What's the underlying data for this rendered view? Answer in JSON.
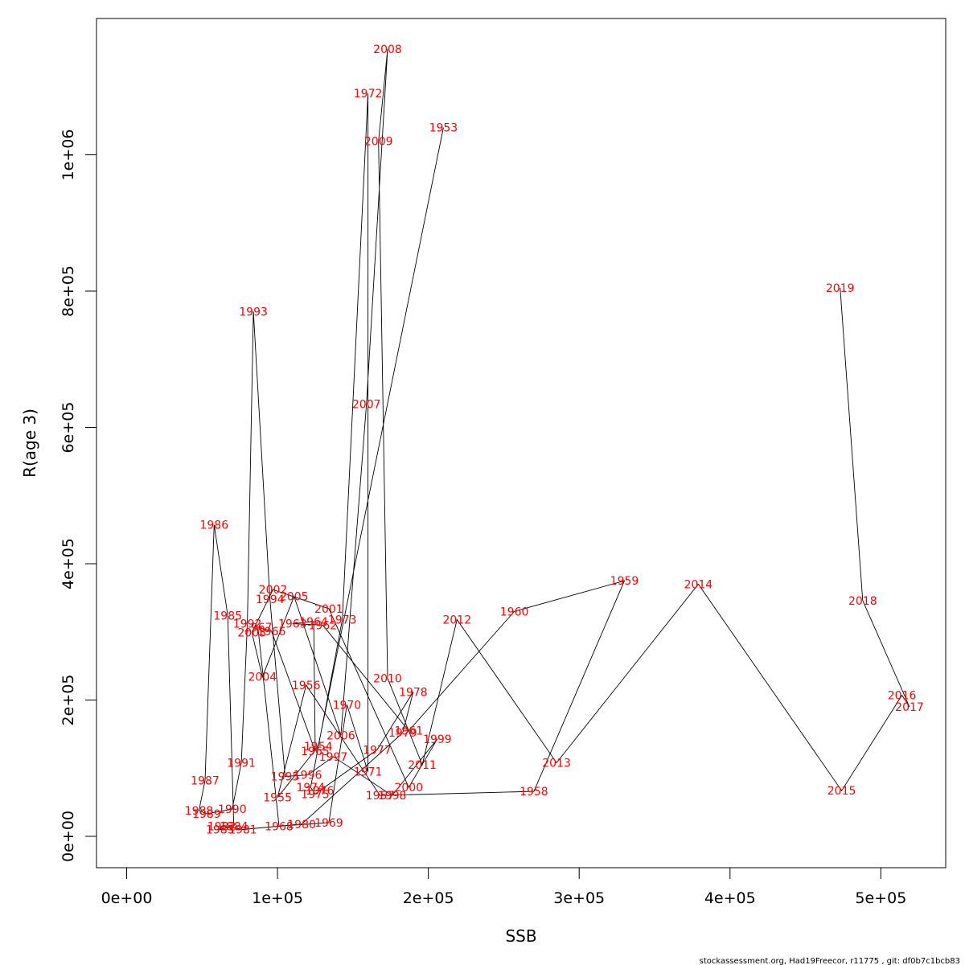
{
  "chart_data": {
    "type": "line",
    "title": "",
    "xlabel": "SSB",
    "ylabel": "R(age 3)",
    "xlim": [
      -20000,
      543000
    ],
    "ylim": [
      -46000,
      1200000
    ],
    "x_ticks": [
      {
        "value": 0,
        "label": "0e+00"
      },
      {
        "value": 100000,
        "label": "1e+05"
      },
      {
        "value": 200000,
        "label": "2e+05"
      },
      {
        "value": 300000,
        "label": "3e+05"
      },
      {
        "value": 400000,
        "label": "4e+05"
      },
      {
        "value": 500000,
        "label": "5e+05"
      }
    ],
    "y_ticks": [
      {
        "value": 0,
        "label": "0e+00"
      },
      {
        "value": 200000,
        "label": "2e+05"
      },
      {
        "value": 400000,
        "label": "4e+05"
      },
      {
        "value": 600000,
        "label": "6e+05"
      },
      {
        "value": 800000,
        "label": "8e+05"
      },
      {
        "value": 1000000,
        "label": "1e+06"
      }
    ],
    "line_color": "#000000",
    "label_color": "#ff0000",
    "grid": false,
    "points": [
      {
        "year": "1953",
        "ssb": 210000,
        "r": 1040000
      },
      {
        "year": "1954",
        "ssb": 127000,
        "r": 132000
      },
      {
        "year": "1955",
        "ssb": 100000,
        "r": 57000
      },
      {
        "year": "1956",
        "ssb": 119000,
        "r": 222000
      },
      {
        "year": "1957",
        "ssb": 168000,
        "r": 60000
      },
      {
        "year": "1958",
        "ssb": 270000,
        "r": 66000
      },
      {
        "year": "1959",
        "ssb": 330000,
        "r": 375000
      },
      {
        "year": "1960",
        "ssb": 257000,
        "r": 330000
      },
      {
        "year": "1961",
        "ssb": 187000,
        "r": 155000
      },
      {
        "year": "1962",
        "ssb": 130000,
        "r": 310000
      },
      {
        "year": "1963",
        "ssb": 110000,
        "r": 312000
      },
      {
        "year": "1964",
        "ssb": 124000,
        "r": 315000
      },
      {
        "year": "1965",
        "ssb": 125000,
        "r": 125000
      },
      {
        "year": "1966",
        "ssb": 96000,
        "r": 301000
      },
      {
        "year": "1967",
        "ssb": 87000,
        "r": 307000
      },
      {
        "year": "1968",
        "ssb": 101000,
        "r": 15000
      },
      {
        "year": "1969",
        "ssb": 134000,
        "r": 20000
      },
      {
        "year": "1970",
        "ssb": 146000,
        "r": 193000
      },
      {
        "year": "1971",
        "ssb": 160000,
        "r": 95000
      },
      {
        "year": "1972",
        "ssb": 160000,
        "r": 1090000
      },
      {
        "year": "1973",
        "ssb": 143000,
        "r": 318000
      },
      {
        "year": "1974",
        "ssb": 122000,
        "r": 72000
      },
      {
        "year": "1975",
        "ssb": 125000,
        "r": 62000
      },
      {
        "year": "1976",
        "ssb": 128000,
        "r": 67000
      },
      {
        "year": "1977",
        "ssb": 166000,
        "r": 127000
      },
      {
        "year": "1978",
        "ssb": 190000,
        "r": 212000
      },
      {
        "year": "1979",
        "ssb": 183000,
        "r": 152000
      },
      {
        "year": "1980",
        "ssb": 116000,
        "r": 18000
      },
      {
        "year": "1981",
        "ssb": 77000,
        "r": 10000
      },
      {
        "year": "1982",
        "ssb": 63000,
        "r": 15000
      },
      {
        "year": "1983",
        "ssb": 62000,
        "r": 10000
      },
      {
        "year": "1984",
        "ssb": 71000,
        "r": 15000
      },
      {
        "year": "1985",
        "ssb": 67000,
        "r": 324000
      },
      {
        "year": "1986",
        "ssb": 58000,
        "r": 457000
      },
      {
        "year": "1987",
        "ssb": 52000,
        "r": 82000
      },
      {
        "year": "1988",
        "ssb": 48000,
        "r": 38000
      },
      {
        "year": "1989",
        "ssb": 53000,
        "r": 33000
      },
      {
        "year": "1990",
        "ssb": 70000,
        "r": 40000
      },
      {
        "year": "1991",
        "ssb": 76000,
        "r": 108000
      },
      {
        "year": "1992",
        "ssb": 80000,
        "r": 312000
      },
      {
        "year": "1993",
        "ssb": 84000,
        "r": 770000
      },
      {
        "year": "1994",
        "ssb": 95000,
        "r": 348000
      },
      {
        "year": "1995",
        "ssb": 105000,
        "r": 88000
      },
      {
        "year": "1996",
        "ssb": 120000,
        "r": 90000
      },
      {
        "year": "1997",
        "ssb": 137000,
        "r": 117000
      },
      {
        "year": "1998",
        "ssb": 176000,
        "r": 60000
      },
      {
        "year": "1999",
        "ssb": 206000,
        "r": 143000
      },
      {
        "year": "2000",
        "ssb": 187000,
        "r": 72000
      },
      {
        "year": "2001",
        "ssb": 134000,
        "r": 334000
      },
      {
        "year": "2002",
        "ssb": 97000,
        "r": 362000
      },
      {
        "year": "2003",
        "ssb": 83000,
        "r": 299000
      },
      {
        "year": "2004",
        "ssb": 90000,
        "r": 234000
      },
      {
        "year": "2005",
        "ssb": 111000,
        "r": 352000
      },
      {
        "year": "2006",
        "ssb": 142000,
        "r": 148000
      },
      {
        "year": "2007",
        "ssb": 159000,
        "r": 634000
      },
      {
        "year": "2008",
        "ssb": 173000,
        "r": 1155000
      },
      {
        "year": "2009",
        "ssb": 167000,
        "r": 1020000
      },
      {
        "year": "2010",
        "ssb": 173000,
        "r": 232000
      },
      {
        "year": "2011",
        "ssb": 196000,
        "r": 105000
      },
      {
        "year": "2012",
        "ssb": 219000,
        "r": 318000
      },
      {
        "year": "2013",
        "ssb": 285000,
        "r": 108000
      },
      {
        "year": "2014",
        "ssb": 379000,
        "r": 370000
      },
      {
        "year": "2015",
        "ssb": 474000,
        "r": 67000
      },
      {
        "year": "2016",
        "ssb": 514000,
        "r": 207000
      },
      {
        "year": "2017",
        "ssb": 519000,
        "r": 190000
      },
      {
        "year": "2018",
        "ssb": 488000,
        "r": 346000
      },
      {
        "year": "2019",
        "ssb": 473000,
        "r": 805000
      }
    ]
  },
  "footer": {
    "credit": "stockassessment.org, Had19Freecor, r11775 , git: df0b7c1bcb83"
  }
}
